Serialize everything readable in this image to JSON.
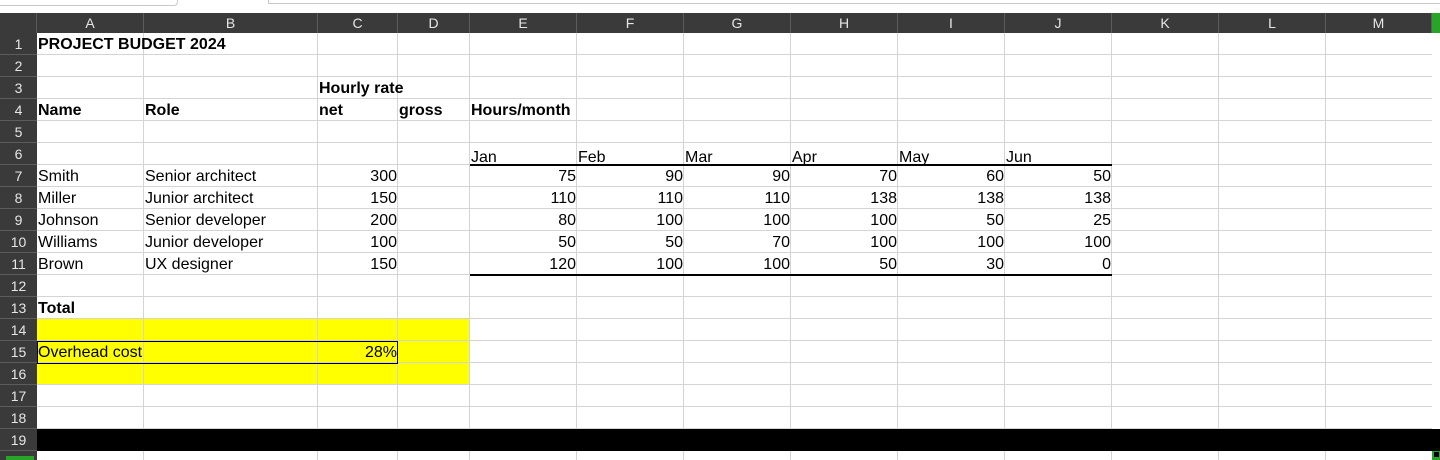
{
  "columns": [
    "A",
    "B",
    "C",
    "D",
    "E",
    "F",
    "G",
    "H",
    "I",
    "J",
    "K",
    "L",
    "M"
  ],
  "rows": [
    "1",
    "2",
    "3",
    "4",
    "5",
    "6",
    "7",
    "8",
    "9",
    "10",
    "11",
    "12",
    "13",
    "14",
    "15",
    "16",
    "17",
    "18",
    "19"
  ],
  "sheet": {
    "title": "PROJECT BUDGET 2024",
    "hourly_rate_label": "Hourly rate",
    "headers": {
      "name": "Name",
      "role": "Role",
      "net": "net",
      "gross": "gross",
      "hours_month": "Hours/month"
    },
    "months": [
      "Jan",
      "Feb",
      "Mar",
      "Apr",
      "May",
      "Jun"
    ],
    "staff": [
      {
        "name": "Smith",
        "role": "Senior architect",
        "rate_net": "300",
        "hours": [
          "75",
          "90",
          "90",
          "70",
          "60",
          "50"
        ]
      },
      {
        "name": "Miller",
        "role": "Junior architect",
        "rate_net": "150",
        "hours": [
          "110",
          "110",
          "110",
          "138",
          "138",
          "138"
        ]
      },
      {
        "name": "Johnson",
        "role": "Senior developer",
        "rate_net": "200",
        "hours": [
          "80",
          "100",
          "100",
          "100",
          "50",
          "25"
        ]
      },
      {
        "name": "Williams",
        "role": "Junior developer",
        "rate_net": "100",
        "hours": [
          "50",
          "50",
          "70",
          "100",
          "100",
          "100"
        ]
      },
      {
        "name": "Brown",
        "role": "UX designer",
        "rate_net": "150",
        "hours": [
          "120",
          "100",
          "100",
          "50",
          "30",
          "0"
        ]
      }
    ],
    "total_label": "Total",
    "overhead_label": "Overhead cost",
    "overhead_value": "28%"
  },
  "colors": {
    "header_bg": "#3a3a3a",
    "header_text": "#e6e6e6",
    "gridline": "#d4d4d4",
    "highlight_fill": "#ffff00",
    "selection_accent": "#28a428"
  }
}
